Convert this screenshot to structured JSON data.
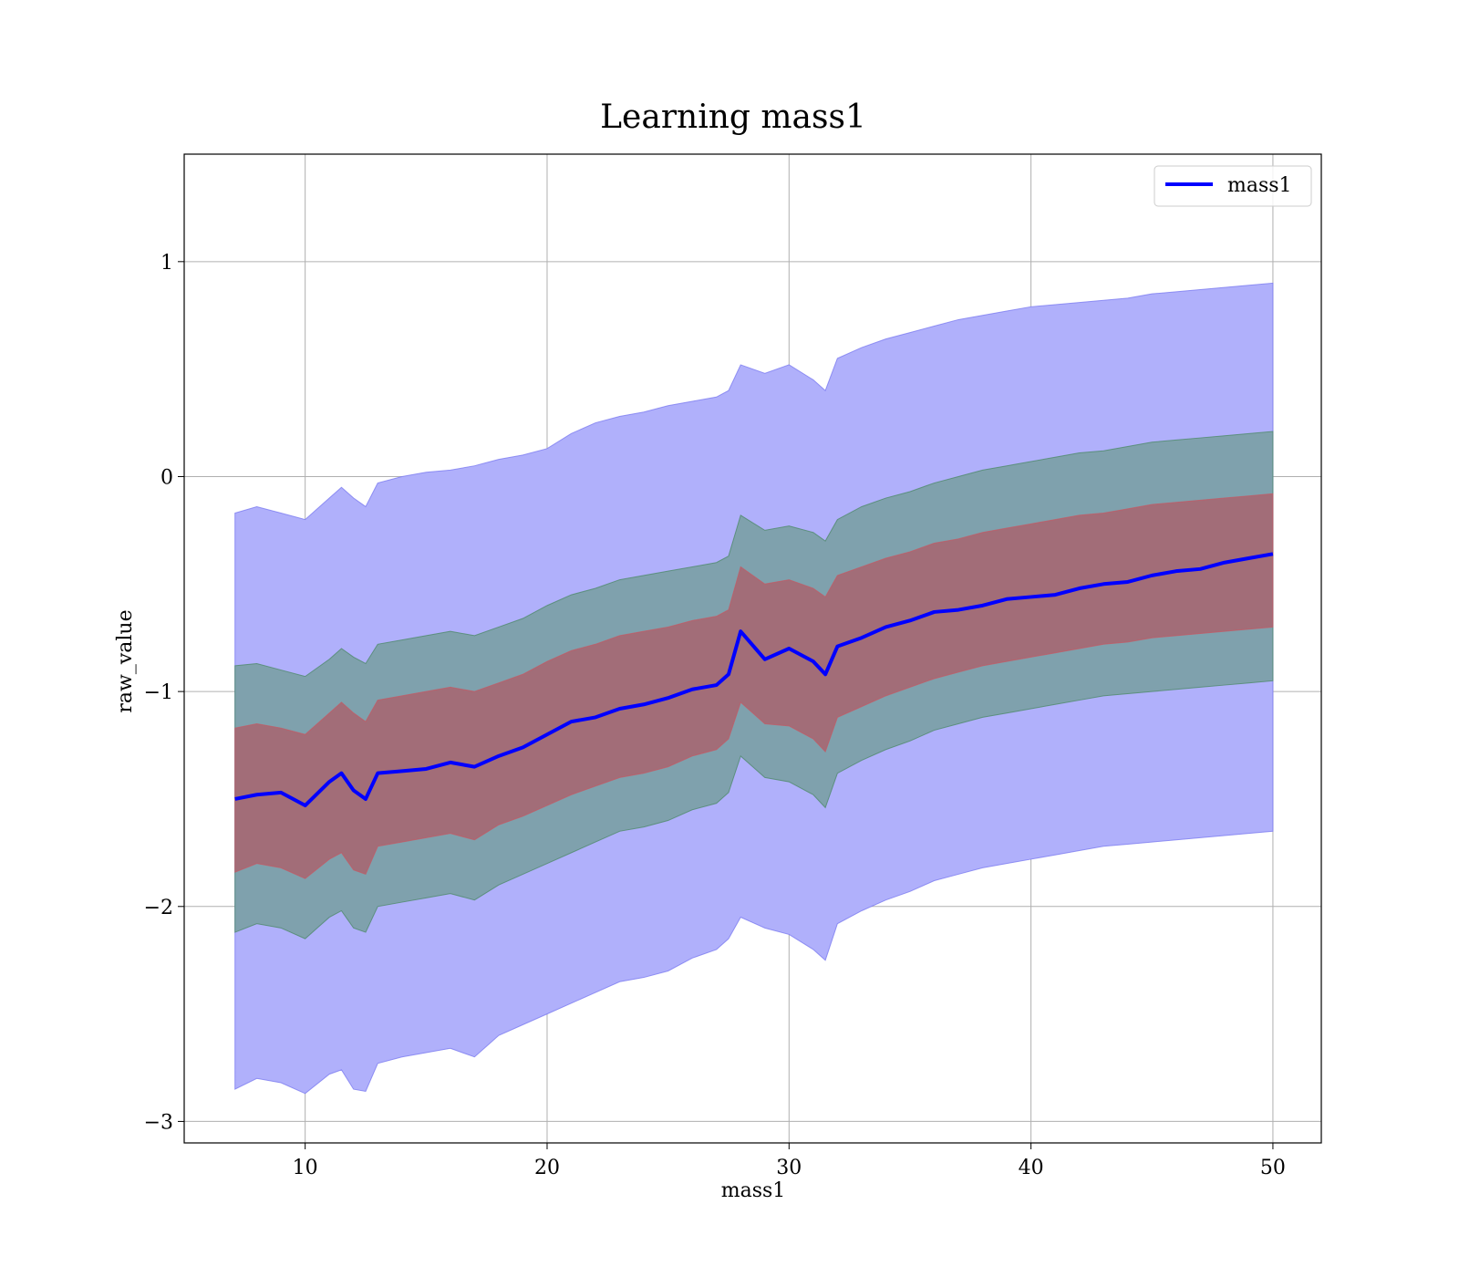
{
  "chart_data": {
    "type": "line",
    "title": "Learning mass1",
    "xlabel": "mass1",
    "ylabel": "raw_value",
    "xlim": [
      5,
      52
    ],
    "ylim": [
      -3.1,
      1.5
    ],
    "xticks": [
      10,
      20,
      30,
      40,
      50
    ],
    "xtick_labels": [
      "10",
      "20",
      "30",
      "40",
      "50"
    ],
    "yticks": [
      1,
      0,
      -1,
      -2,
      -3
    ],
    "ytick_labels": [
      "1",
      "0",
      "−1",
      "−2",
      "−3"
    ],
    "grid": true,
    "legend": {
      "position": "top-right",
      "entries": [
        "mass1"
      ]
    },
    "colors": {
      "line": "#0000ff",
      "outer_band": "#b0b0fb",
      "middle_band": "#7fa1ad",
      "inner_band": "#a26d78"
    },
    "series": [
      {
        "name": "mass1",
        "x": [
          7.1,
          8.0,
          9.0,
          10.0,
          11.0,
          11.5,
          12.0,
          12.5,
          13.0,
          14.0,
          15.0,
          16.0,
          17.0,
          18.0,
          19.0,
          20.0,
          21.0,
          22.0,
          23.0,
          24.0,
          25.0,
          26.0,
          27.0,
          27.5,
          28.0,
          29.0,
          30.0,
          31.0,
          31.5,
          32.0,
          33.0,
          34.0,
          35.0,
          36.0,
          37.0,
          38.0,
          39.0,
          40.0,
          41.0,
          42.0,
          43.0,
          44.0,
          45.0,
          46.0,
          47.0,
          48.0,
          49.0,
          50.0
        ],
        "y": [
          -1.5,
          -1.48,
          -1.47,
          -1.53,
          -1.42,
          -1.38,
          -1.46,
          -1.5,
          -1.38,
          -1.37,
          -1.36,
          -1.33,
          -1.35,
          -1.3,
          -1.26,
          -1.2,
          -1.14,
          -1.12,
          -1.08,
          -1.06,
          -1.03,
          -0.99,
          -0.97,
          -0.92,
          -0.72,
          -0.85,
          -0.8,
          -0.86,
          -0.92,
          -0.79,
          -0.75,
          -0.7,
          -0.67,
          -0.63,
          -0.62,
          -0.6,
          -0.57,
          -0.56,
          -0.55,
          -0.52,
          -0.5,
          -0.49,
          -0.46,
          -0.44,
          -0.43,
          -0.4,
          -0.38,
          -0.36
        ],
        "outer_lower": [
          -2.85,
          -2.8,
          -2.82,
          -2.87,
          -2.78,
          -2.76,
          -2.85,
          -2.86,
          -2.73,
          -2.7,
          -2.68,
          -2.66,
          -2.7,
          -2.6,
          -2.55,
          -2.5,
          -2.45,
          -2.4,
          -2.35,
          -2.33,
          -2.3,
          -2.24,
          -2.2,
          -2.15,
          -2.05,
          -2.1,
          -2.13,
          -2.2,
          -2.25,
          -2.08,
          -2.02,
          -1.97,
          -1.93,
          -1.88,
          -1.85,
          -1.82,
          -1.8,
          -1.78,
          -1.76,
          -1.74,
          -1.72,
          -1.71,
          -1.7,
          -1.69,
          -1.68,
          -1.67,
          -1.66,
          -1.65
        ],
        "outer_upper": [
          -0.17,
          -0.14,
          -0.17,
          -0.2,
          -0.1,
          -0.05,
          -0.1,
          -0.14,
          -0.03,
          0.0,
          0.02,
          0.03,
          0.05,
          0.08,
          0.1,
          0.13,
          0.2,
          0.25,
          0.28,
          0.3,
          0.33,
          0.35,
          0.37,
          0.4,
          0.52,
          0.48,
          0.52,
          0.45,
          0.4,
          0.55,
          0.6,
          0.64,
          0.67,
          0.7,
          0.73,
          0.75,
          0.77,
          0.79,
          0.8,
          0.81,
          0.82,
          0.83,
          0.85,
          0.86,
          0.87,
          0.88,
          0.89,
          0.9
        ],
        "middle_lower": [
          -2.12,
          -2.08,
          -2.1,
          -2.15,
          -2.05,
          -2.02,
          -2.1,
          -2.12,
          -2.0,
          -1.98,
          -1.96,
          -1.94,
          -1.97,
          -1.9,
          -1.85,
          -1.8,
          -1.75,
          -1.7,
          -1.65,
          -1.63,
          -1.6,
          -1.55,
          -1.52,
          -1.47,
          -1.3,
          -1.4,
          -1.42,
          -1.48,
          -1.54,
          -1.38,
          -1.32,
          -1.27,
          -1.23,
          -1.18,
          -1.15,
          -1.12,
          -1.1,
          -1.08,
          -1.06,
          -1.04,
          -1.02,
          -1.01,
          -1.0,
          -0.99,
          -0.98,
          -0.97,
          -0.96,
          -0.95
        ],
        "middle_upper": [
          -0.88,
          -0.87,
          -0.9,
          -0.93,
          -0.85,
          -0.8,
          -0.84,
          -0.87,
          -0.78,
          -0.76,
          -0.74,
          -0.72,
          -0.74,
          -0.7,
          -0.66,
          -0.6,
          -0.55,
          -0.52,
          -0.48,
          -0.46,
          -0.44,
          -0.42,
          -0.4,
          -0.37,
          -0.18,
          -0.25,
          -0.23,
          -0.26,
          -0.3,
          -0.2,
          -0.14,
          -0.1,
          -0.07,
          -0.03,
          0.0,
          0.03,
          0.05,
          0.07,
          0.09,
          0.11,
          0.12,
          0.14,
          0.16,
          0.17,
          0.18,
          0.19,
          0.2,
          0.21
        ],
        "inner_lower": [
          -1.84,
          -1.8,
          -1.82,
          -1.87,
          -1.78,
          -1.75,
          -1.83,
          -1.85,
          -1.72,
          -1.7,
          -1.68,
          -1.66,
          -1.69,
          -1.62,
          -1.58,
          -1.53,
          -1.48,
          -1.44,
          -1.4,
          -1.38,
          -1.35,
          -1.3,
          -1.27,
          -1.22,
          -1.05,
          -1.15,
          -1.16,
          -1.22,
          -1.28,
          -1.12,
          -1.07,
          -1.02,
          -0.98,
          -0.94,
          -0.91,
          -0.88,
          -0.86,
          -0.84,
          -0.82,
          -0.8,
          -0.78,
          -0.77,
          -0.75,
          -0.74,
          -0.73,
          -0.72,
          -0.71,
          -0.7
        ],
        "inner_upper": [
          -1.17,
          -1.15,
          -1.17,
          -1.2,
          -1.1,
          -1.05,
          -1.1,
          -1.14,
          -1.04,
          -1.02,
          -1.0,
          -0.98,
          -1.0,
          -0.96,
          -0.92,
          -0.86,
          -0.81,
          -0.78,
          -0.74,
          -0.72,
          -0.7,
          -0.67,
          -0.65,
          -0.62,
          -0.42,
          -0.5,
          -0.48,
          -0.52,
          -0.56,
          -0.46,
          -0.42,
          -0.38,
          -0.35,
          -0.31,
          -0.29,
          -0.26,
          -0.24,
          -0.22,
          -0.2,
          -0.18,
          -0.17,
          -0.15,
          -0.13,
          -0.12,
          -0.11,
          -0.1,
          -0.09,
          -0.08
        ]
      }
    ]
  }
}
